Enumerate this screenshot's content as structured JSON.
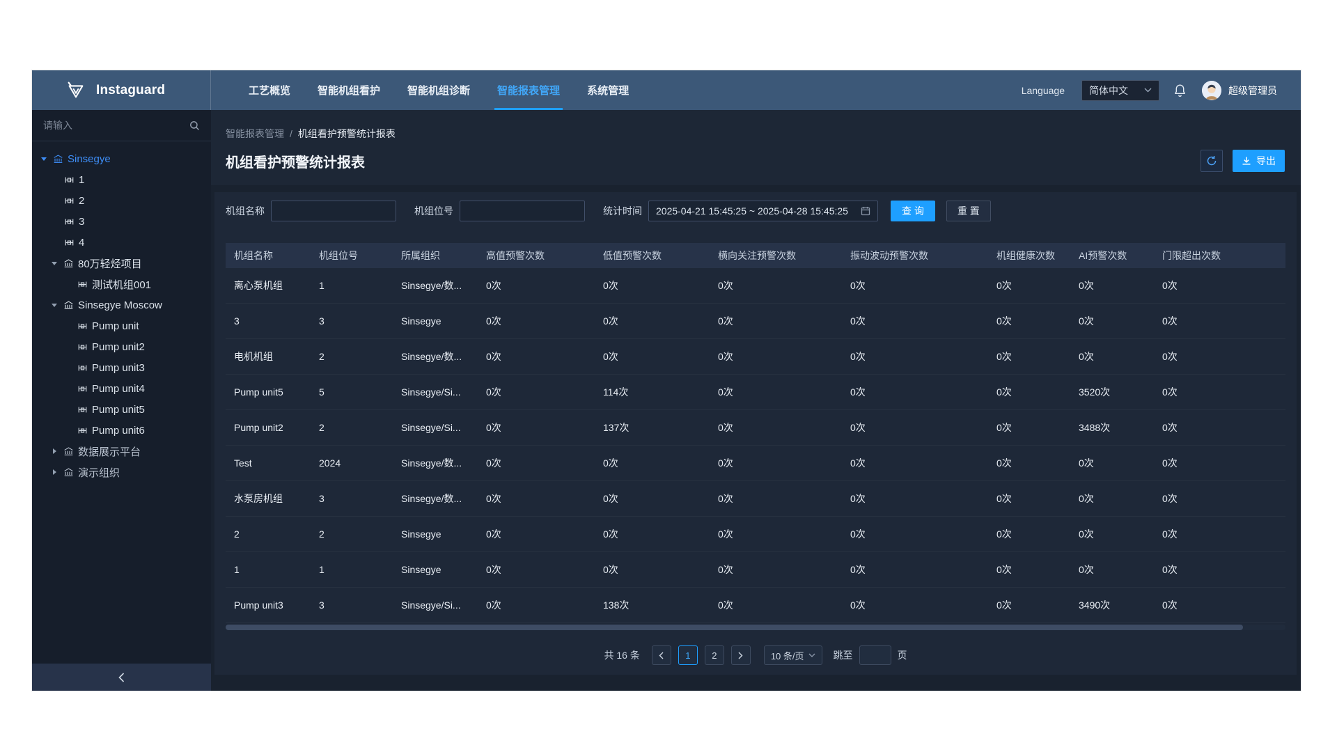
{
  "brand": {
    "name": "Instaguard"
  },
  "navbar": {
    "items": [
      "工艺概览",
      "智能机组看护",
      "智能机组诊断",
      "智能报表管理",
      "系统管理"
    ],
    "active_index": 3,
    "language_label": "Language",
    "language_value": "简体中文",
    "user_name": "超级管理员"
  },
  "sidebar": {
    "search_placeholder": "请输入",
    "tree": [
      {
        "label": "Sinsegye",
        "level": 0,
        "kind": "org",
        "caret": "down",
        "selected": true
      },
      {
        "label": "1",
        "level": 1,
        "kind": "unit"
      },
      {
        "label": "2",
        "level": 1,
        "kind": "unit"
      },
      {
        "label": "3",
        "level": 1,
        "kind": "unit"
      },
      {
        "label": "4",
        "level": 1,
        "kind": "unit"
      },
      {
        "label": "80万轻烃项目",
        "level": 1,
        "kind": "org",
        "caret": "down"
      },
      {
        "label": "测试机组001",
        "level": 2,
        "kind": "unit"
      },
      {
        "label": "Sinsegye Moscow",
        "level": 1,
        "kind": "org",
        "caret": "down"
      },
      {
        "label": "Pump unit",
        "level": 2,
        "kind": "unit"
      },
      {
        "label": "Pump unit2",
        "level": 2,
        "kind": "unit"
      },
      {
        "label": "Pump unit3",
        "level": 2,
        "kind": "unit"
      },
      {
        "label": "Pump unit4",
        "level": 2,
        "kind": "unit"
      },
      {
        "label": "Pump unit5",
        "level": 2,
        "kind": "unit"
      },
      {
        "label": "Pump unit6",
        "level": 2,
        "kind": "unit"
      },
      {
        "label": "数据展示平台",
        "level": 1,
        "kind": "org",
        "caret": "right",
        "dim": true
      },
      {
        "label": "演示组织",
        "level": 1,
        "kind": "org",
        "caret": "right",
        "dim": true
      }
    ]
  },
  "breadcrumb": {
    "parent": "智能报表管理",
    "separator": "/",
    "current": "机组看护预警统计报表"
  },
  "page": {
    "title": "机组看护预警统计报表",
    "export_label": "导出"
  },
  "filters": {
    "unit_name_label": "机组名称",
    "unit_tag_label": "机组位号",
    "time_label": "统计时间",
    "time_value": "2025-04-21 15:45:25 ~ 2025-04-28 15:45:25",
    "search_label": "查 询",
    "reset_label": "重 置"
  },
  "table": {
    "columns": [
      "机组名称",
      "机组位号",
      "所属组织",
      "高值预警次数",
      "低值预警次数",
      "横向关注预警次数",
      "振动波动预警次数",
      "机组健康次数",
      "AI预警次数",
      "门限超出次数"
    ],
    "rows": [
      [
        "离心泵机组",
        "1",
        "Sinsegye/数...",
        "0次",
        "0次",
        "0次",
        "0次",
        "0次",
        "0次",
        "0次"
      ],
      [
        "3",
        "3",
        "Sinsegye",
        "0次",
        "0次",
        "0次",
        "0次",
        "0次",
        "0次",
        "0次"
      ],
      [
        "电机机组",
        "2",
        "Sinsegye/数...",
        "0次",
        "0次",
        "0次",
        "0次",
        "0次",
        "0次",
        "0次"
      ],
      [
        "Pump unit5",
        "5",
        "Sinsegye/Si...",
        "0次",
        "114次",
        "0次",
        "0次",
        "0次",
        "3520次",
        "0次"
      ],
      [
        "Pump unit2",
        "2",
        "Sinsegye/Si...",
        "0次",
        "137次",
        "0次",
        "0次",
        "0次",
        "3488次",
        "0次"
      ],
      [
        "Test",
        "2024",
        "Sinsegye/数...",
        "0次",
        "0次",
        "0次",
        "0次",
        "0次",
        "0次",
        "0次"
      ],
      [
        "水泵房机组",
        "3",
        "Sinsegye/数...",
        "0次",
        "0次",
        "0次",
        "0次",
        "0次",
        "0次",
        "0次"
      ],
      [
        "2",
        "2",
        "Sinsegye",
        "0次",
        "0次",
        "0次",
        "0次",
        "0次",
        "0次",
        "0次"
      ],
      [
        "1",
        "1",
        "Sinsegye",
        "0次",
        "0次",
        "0次",
        "0次",
        "0次",
        "0次",
        "0次"
      ],
      [
        "Pump unit3",
        "3",
        "Sinsegye/Si...",
        "0次",
        "138次",
        "0次",
        "0次",
        "0次",
        "3490次",
        "0次"
      ]
    ]
  },
  "pagination": {
    "total_text": "共 16 条",
    "pages": [
      "1",
      "2"
    ],
    "active_page": "1",
    "page_size": "10 条/页",
    "jump_label": "跳至",
    "jump_suffix": "页"
  },
  "colors": {
    "accent": "#1e9fff",
    "active_link": "#41a7f8",
    "navbar": "#3c5878",
    "selected_tree": "#3e8ef7"
  }
}
